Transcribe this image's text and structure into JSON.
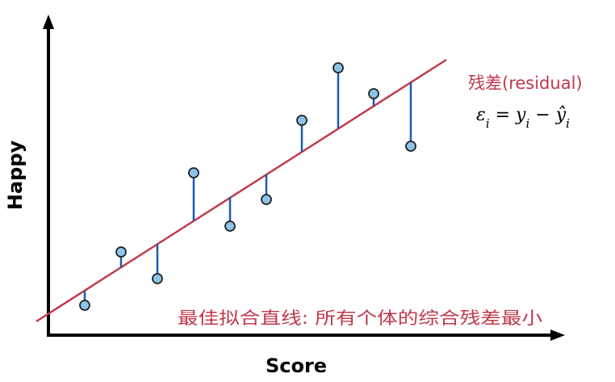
{
  "diagram": {
    "x_axis_label": "Score",
    "y_axis_label": "Happy",
    "residual_label": "残差(residual)",
    "residual_formula": {
      "epsilon": "ε",
      "sub_i": "i",
      "equals": " = ",
      "y": "y",
      "minus": " − ",
      "y_hat": "ŷ"
    },
    "fit_line_caption": "最佳拟合直线: 所有个体的综合残差最小",
    "colors": {
      "axis": "#000000",
      "fit_line": "#c0394b",
      "residual": "#1a5bb5",
      "point_fill": "#8cc3e8",
      "point_stroke": "#222222",
      "label_red": "#c0394b"
    }
  }
}
